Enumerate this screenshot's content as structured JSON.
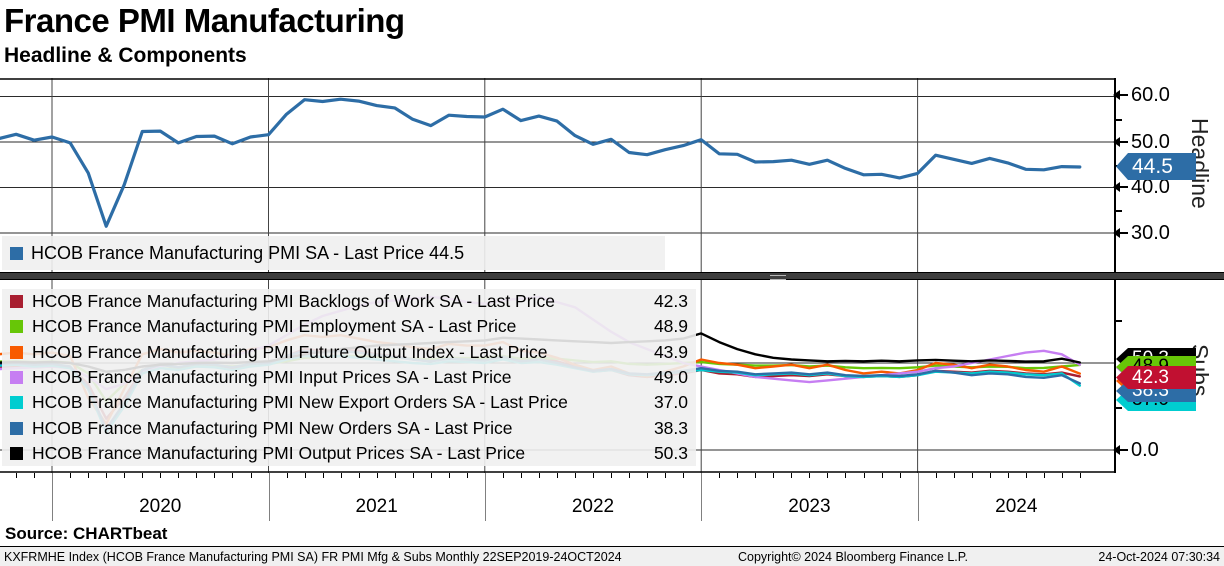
{
  "header": {
    "title": "France PMI Manufacturing",
    "subtitle": "Headline & Components"
  },
  "legend_headline": {
    "items": [
      {
        "label": "HCOB France Manufacturing PMI SA - Last Price 44.5",
        "color": "#2d6da6"
      }
    ]
  },
  "legend_subs": {
    "items": [
      {
        "label": "HCOB France Manufacturing PMI Backlogs of Work SA - Last Price",
        "value": "42.3",
        "color": "#a81e30"
      },
      {
        "label": "HCOB France Manufacturing PMI Employment SA - Last Price",
        "value": "48.9",
        "color": "#67c607"
      },
      {
        "label": "HCOB France Manufacturing PMI Future Output Index - Last Price",
        "value": "43.9",
        "color": "#f85a00"
      },
      {
        "label": "HCOB France Manufacturing PMI Input Prices SA - Last Price",
        "value": "49.0",
        "color": "#c67ef2"
      },
      {
        "label": "HCOB France Manufacturing PMI New Export Orders SA - Last Price",
        "value": "37.0",
        "color": "#00cdd0"
      },
      {
        "label": "HCOB France Manufacturing PMI New Orders SA - Last Price",
        "value": "38.3",
        "color": "#2d6da6"
      },
      {
        "label": "HCOB France Manufacturing PMI Output Prices SA - Last Price",
        "value": "50.3",
        "color": "#000000"
      }
    ]
  },
  "panels": {
    "headline": {
      "axis_title": "Headline",
      "ticks": [
        {
          "label": "60.0"
        },
        {
          "label": "50.0"
        },
        {
          "label": "40.0"
        },
        {
          "label": "30.0"
        }
      ],
      "badge": {
        "label": "44.5",
        "bg": "#2d6da6",
        "fg": "#ffffff"
      }
    },
    "subs": {
      "axis_title": "Subs",
      "ticks": [
        {
          "label": "0.0"
        }
      ],
      "badges": [
        {
          "label": "50.3",
          "bg": "#000000",
          "fg": "#ffffff"
        },
        {
          "label": "49.0",
          "bg": "#c67ef2",
          "fg": "#000000"
        },
        {
          "label": "43.9",
          "bg": "#f85a00",
          "fg": "#000000"
        },
        {
          "label": "48.9",
          "bg": "#67c607",
          "fg": "#000000"
        },
        {
          "label": "37.0",
          "bg": "#00cdd0",
          "fg": "#000000"
        },
        {
          "label": "38.3",
          "bg": "#2d6da6",
          "fg": "#ffffff"
        },
        {
          "label": "42.3",
          "bg": "#c11031",
          "fg": "#ffffff"
        }
      ]
    }
  },
  "x_axis": {
    "year_labels": [
      "2020",
      "2021",
      "2022",
      "2023",
      "2024"
    ]
  },
  "source_line": "Source: CHARTbeat",
  "footer": {
    "left": "KXFRMHE Index (HCOB France Manufacturing PMI SA) FR PMI Mfg & Subs  Monthly 22SEP2019-24OCT2024",
    "center": "Copyright© 2024 Bloomberg Finance L.P.",
    "right": "24-Oct-2024 07:30:34"
  },
  "chart_data": [
    {
      "type": "line",
      "title": "Headline",
      "x_start": "2019-09",
      "x_end": "2024-10",
      "x_step": "month",
      "ylim": [
        27,
        64
      ],
      "yticks": [
        30,
        40,
        50,
        60
      ],
      "grid": "on",
      "series": [
        {
          "name": "HCOB France Manufacturing PMI SA",
          "color": "#2d6da6",
          "last_price": 44.5,
          "values": [
            50.1,
            50.7,
            51.7,
            50.4,
            51.1,
            49.8,
            43.2,
            31.5,
            40.6,
            52.3,
            52.4,
            49.8,
            51.2,
            51.3,
            49.6,
            51.1,
            51.6,
            56.1,
            59.3,
            58.9,
            59.4,
            59.0,
            58.0,
            57.5,
            55.0,
            53.6,
            55.9,
            55.6,
            55.5,
            57.2,
            54.7,
            55.7,
            54.6,
            51.4,
            49.5,
            50.6,
            47.7,
            47.2,
            48.3,
            49.2,
            50.5,
            47.4,
            47.3,
            45.6,
            45.7,
            46.0,
            45.1,
            46.0,
            44.2,
            42.8,
            42.9,
            42.1,
            43.1,
            47.1,
            46.2,
            45.3,
            46.4,
            45.4,
            44.0,
            43.9,
            44.6,
            44.5
          ]
        }
      ]
    },
    {
      "type": "line",
      "title": "Subs",
      "x_start": "2019-09",
      "x_end": "2024-10",
      "x_step": "month",
      "ylim": [
        -13,
        98
      ],
      "yticks": [
        0,
        50
      ],
      "grid": "on",
      "series": [
        {
          "name": "HCOB France Manufacturing PMI Backlogs of Work SA",
          "color": "#a81e30",
          "last_price": 42.3,
          "values": [
            47.0,
            47.5,
            48.0,
            47.5,
            48.0,
            47.5,
            38.0,
            18.0,
            30.0,
            46.0,
            49.0,
            47.5,
            49.0,
            48.5,
            47.0,
            49.0,
            50.0,
            54.0,
            58.0,
            57.0,
            57.5,
            57.0,
            55.0,
            54.0,
            52.0,
            51.0,
            53.0,
            52.5,
            52.0,
            54.0,
            52.0,
            53.0,
            51.0,
            48.0,
            45.0,
            46.0,
            43.0,
            42.0,
            43.0,
            44.0,
            46.0,
            44.0,
            43.5,
            42.0,
            42.5,
            43.0,
            42.5,
            43.5,
            42.5,
            42.0,
            42.5,
            42.0,
            43.0,
            45.5,
            45.0,
            44.5,
            45.5,
            45.0,
            44.0,
            43.5,
            44.5,
            42.3
          ]
        },
        {
          "name": "HCOB France Manufacturing PMI Employment SA",
          "color": "#67c607",
          "last_price": 48.9,
          "values": [
            50.5,
            50.8,
            51.0,
            50.5,
            50.8,
            50.2,
            44.0,
            28.0,
            38.0,
            46.0,
            47.0,
            46.5,
            48.0,
            48.5,
            48.0,
            49.0,
            49.5,
            51.0,
            53.0,
            53.5,
            54.0,
            54.0,
            53.5,
            53.0,
            52.5,
            52.0,
            53.0,
            52.8,
            53.0,
            54.0,
            52.5,
            53.0,
            52.5,
            51.5,
            50.5,
            51.0,
            49.5,
            49.0,
            49.5,
            50.0,
            50.5,
            49.5,
            49.0,
            48.5,
            48.5,
            48.8,
            48.0,
            48.5,
            47.5,
            47.0,
            47.2,
            47.0,
            47.5,
            48.5,
            48.0,
            47.5,
            48.0,
            47.8,
            47.0,
            47.2,
            48.0,
            48.9
          ]
        },
        {
          "name": "HCOB France Manufacturing PMI Future Output Index",
          "color": "#f85a00",
          "last_price": 43.9,
          "values": [
            54.0,
            55.0,
            56.0,
            55.0,
            56.0,
            54.0,
            30.0,
            15.0,
            35.0,
            55.0,
            58.0,
            56.0,
            57.0,
            56.0,
            54.0,
            58.0,
            59.0,
            63.0,
            66.0,
            65.0,
            66.0,
            64.0,
            62.0,
            61.0,
            59.0,
            58.0,
            61.0,
            60.0,
            60.0,
            62.0,
            57.0,
            56.0,
            53.0,
            49.0,
            46.0,
            48.0,
            44.0,
            42.0,
            45.0,
            48.0,
            52.0,
            50.0,
            49.0,
            47.0,
            48.0,
            49.0,
            47.0,
            49.0,
            46.0,
            44.0,
            45.0,
            44.0,
            46.0,
            50.0,
            49.0,
            47.0,
            49.0,
            48.0,
            46.0,
            45.0,
            48.0,
            43.9
          ]
        },
        {
          "name": "HCOB France Manufacturing PMI Input Prices SA",
          "color": "#c67ef2",
          "last_price": 49.0,
          "values": [
            47.0,
            46.5,
            47.0,
            47.5,
            48.0,
            47.0,
            42.0,
            35.0,
            38.0,
            45.0,
            48.0,
            50.0,
            51.0,
            52.0,
            54.0,
            57.0,
            60.0,
            66.0,
            72.0,
            77.0,
            80.0,
            83.0,
            85.0,
            86.0,
            87.0,
            88.0,
            87.0,
            85.0,
            84.0,
            86.0,
            87.0,
            88.0,
            85.0,
            82.0,
            75.0,
            68.0,
            62.0,
            58.0,
            54.0,
            50.0,
            48.0,
            46.0,
            44.0,
            42.0,
            41.0,
            40.0,
            39.0,
            40.0,
            41.0,
            42.0,
            43.0,
            44.0,
            45.0,
            47.0,
            48.0,
            50.0,
            52.0,
            54.0,
            56.0,
            57.0,
            55.0,
            49.0
          ]
        },
        {
          "name": "HCOB France Manufacturing PMI New Export Orders SA",
          "color": "#00cdd0",
          "last_price": 37.0,
          "values": [
            48.0,
            48.5,
            49.0,
            48.0,
            48.5,
            47.0,
            35.0,
            10.0,
            25.0,
            44.0,
            47.0,
            46.0,
            48.0,
            47.5,
            46.0,
            48.0,
            49.0,
            52.0,
            54.0,
            53.5,
            54.0,
            53.0,
            52.0,
            51.0,
            50.0,
            49.5,
            51.0,
            50.5,
            50.0,
            52.0,
            50.0,
            50.5,
            49.0,
            47.0,
            45.0,
            46.0,
            43.5,
            43.0,
            44.0,
            45.0,
            46.0,
            45.0,
            44.5,
            43.0,
            43.5,
            44.0,
            43.0,
            44.0,
            42.5,
            42.0,
            42.5,
            42.0,
            43.0,
            45.0,
            44.5,
            44.0,
            45.0,
            44.5,
            43.5,
            43.0,
            44.0,
            37.0
          ]
        },
        {
          "name": "HCOB France Manufacturing PMI New Orders SA",
          "color": "#2d6da6",
          "last_price": 38.3,
          "values": [
            49.0,
            49.5,
            50.0,
            49.0,
            49.5,
            48.0,
            36.0,
            12.0,
            27.0,
            46.0,
            49.0,
            47.5,
            49.5,
            49.0,
            47.5,
            49.5,
            50.0,
            54.0,
            57.0,
            56.0,
            57.0,
            56.0,
            54.5,
            53.5,
            52.0,
            51.0,
            52.5,
            52.0,
            51.5,
            53.5,
            51.0,
            52.0,
            50.0,
            47.5,
            45.5,
            46.5,
            44.0,
            43.5,
            44.5,
            45.5,
            47.0,
            45.5,
            45.0,
            43.5,
            44.0,
            44.5,
            43.5,
            44.5,
            43.0,
            42.5,
            43.0,
            42.5,
            43.5,
            45.5,
            44.5,
            43.0,
            44.0,
            43.5,
            42.0,
            41.5,
            43.0,
            38.3
          ]
        },
        {
          "name": "HCOB France Manufacturing PMI Output Prices SA",
          "color": "#000000",
          "last_price": 50.3,
          "values": [
            50.0,
            50.2,
            50.5,
            50.3,
            50.5,
            50.0,
            48.0,
            45.0,
            46.0,
            48.0,
            49.0,
            49.5,
            50.0,
            50.2,
            50.0,
            50.5,
            51.0,
            53.0,
            55.0,
            56.5,
            58.0,
            59.0,
            60.0,
            60.5,
            61.0,
            61.5,
            62.0,
            62.5,
            63.0,
            64.5,
            64.0,
            63.5,
            63.0,
            62.5,
            62.0,
            61.5,
            62.0,
            62.5,
            63.0,
            64.0,
            67.0,
            62.0,
            58.0,
            55.0,
            53.0,
            52.0,
            51.5,
            51.0,
            51.2,
            51.0,
            51.3,
            51.0,
            51.5,
            51.8,
            51.3,
            51.0,
            51.5,
            51.2,
            50.8,
            51.0,
            52.5,
            50.3
          ]
        }
      ]
    }
  ]
}
